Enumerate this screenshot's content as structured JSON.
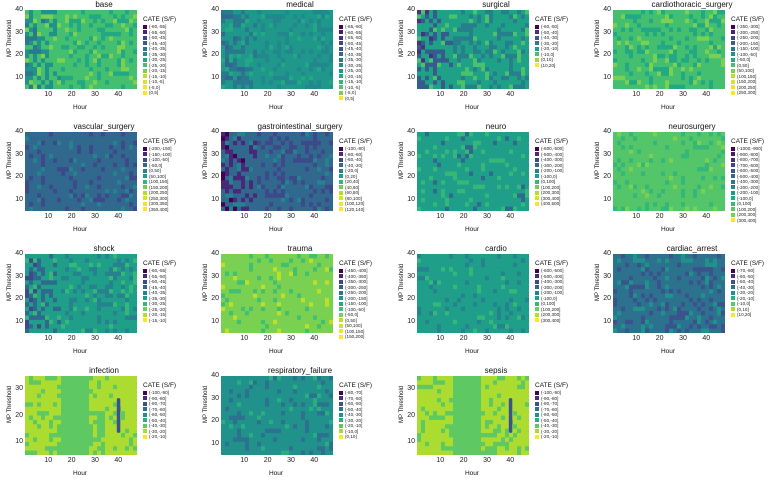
{
  "chart_data": [
    {
      "type": "heatmap",
      "title": "base",
      "xlabel": "Hour",
      "ylabel": "MP Threshold",
      "xticks": [
        10,
        20,
        30,
        40
      ],
      "yticks": [
        10,
        20,
        30,
        40
      ],
      "xlim": [
        0,
        48
      ],
      "ylim": [
        5,
        40
      ],
      "legend_title": "CATE (S/F)",
      "legend": [
        "(-60,-55]",
        "(-55,-50]",
        "(-50,-45]",
        "(-45,-40]",
        "(-40,-35]",
        "(-35,-30]",
        "(-30,-25]",
        "(-25,-20]",
        "(-20,-15]",
        "(-15,-10]",
        "(-10,-5]",
        "(-5,0]",
        "(0,5]"
      ],
      "colors": [
        "#440154",
        "#482475",
        "#414487",
        "#355f8d",
        "#2a788e",
        "#21918c",
        "#22a884",
        "#44bf70",
        "#7ad151",
        "#bddf26",
        "#d9e22a",
        "#ece72b",
        "#fde725"
      ],
      "base_level": 7,
      "texture": "dark_left"
    },
    {
      "type": "heatmap",
      "title": "medical",
      "xlabel": "Hour",
      "ylabel": "MP Threshold",
      "xticks": [
        10,
        20,
        30,
        40
      ],
      "yticks": [
        10,
        20,
        30,
        40
      ],
      "xlim": [
        0,
        48
      ],
      "ylim": [
        5,
        40
      ],
      "legend_title": "CATE (S/F)",
      "legend": [
        "(-65,-60]",
        "(-60,-55]",
        "(-55,-50]",
        "(-50,-45]",
        "(-45,-40]",
        "(-40,-35]",
        "(-35,-30]",
        "(-30,-25]",
        "(-25,-20]",
        "(-20,-15]",
        "(-15,-10]",
        "(-10,-5]",
        "(-5,0]",
        "(0,5]"
      ],
      "colors": [
        "#440154",
        "#481a6c",
        "#472f7d",
        "#414487",
        "#39568c",
        "#31688e",
        "#2a788e",
        "#23888e",
        "#1f988b",
        "#22a884",
        "#35b779",
        "#54c568",
        "#7ad151",
        "#fde725"
      ],
      "base_level": 8,
      "texture": "dark_left"
    },
    {
      "type": "heatmap",
      "title": "surgical",
      "xlabel": "Hour",
      "ylabel": "MP Threshold",
      "xticks": [
        10,
        20,
        30,
        40
      ],
      "yticks": [
        10,
        20,
        30,
        40
      ],
      "xlim": [
        0,
        48
      ],
      "ylim": [
        5,
        40
      ],
      "legend_title": "CATE (S/F)",
      "legend": [
        "(-60,-50]",
        "(-50,-40]",
        "(-40,-30]",
        "(-30,-20]",
        "(-20,-10]",
        "(-10,0]",
        "(0,10]",
        "(10,20]"
      ],
      "colors": [
        "#440154",
        "#46327e",
        "#365c8d",
        "#277f8e",
        "#1fa187",
        "#4ac16d",
        "#a0da39",
        "#fde725"
      ],
      "base_level": 4,
      "texture": "dark_left"
    },
    {
      "type": "heatmap",
      "title": "cardiothoracic_surgery",
      "xlabel": "Hour",
      "ylabel": "MP Threshold",
      "xticks": [
        10,
        20,
        30,
        40
      ],
      "yticks": [
        10,
        20,
        30,
        40
      ],
      "xlim": [
        0,
        48
      ],
      "ylim": [
        5,
        40
      ],
      "legend_title": "CATE (S/F)",
      "legend": [
        "(-350,-300]",
        "(-300,-250]",
        "(-250,-200]",
        "(-200,-150]",
        "(-150,-100]",
        "(-100,-50]",
        "(-50,0]",
        "(0,50]",
        "(50,100]",
        "(100,150]",
        "(150,200]",
        "(200,250]",
        "(250,300]"
      ],
      "colors": [
        "#440154",
        "#482475",
        "#414487",
        "#355f8d",
        "#2a788e",
        "#21918c",
        "#22a884",
        "#44bf70",
        "#7ad151",
        "#bddf26",
        "#d9e22a",
        "#ece72b",
        "#fde725"
      ],
      "base_level": 7,
      "texture": "blocks"
    },
    {
      "type": "heatmap",
      "title": "vascular_surgery",
      "xlabel": "Hour",
      "ylabel": "MP Threshold",
      "xticks": [
        10,
        20,
        30,
        40
      ],
      "yticks": [
        10,
        20,
        30,
        40
      ],
      "xlim": [
        0,
        48
      ],
      "ylim": [
        5,
        40
      ],
      "legend_title": "CATE (S/F)",
      "legend": [
        "(-200,-150]",
        "(-150,-100]",
        "(-100,-50]",
        "(-50,0]",
        "(0,50]",
        "(50,100]",
        "(100,150]",
        "(150,200]",
        "(200,250]",
        "(250,300]",
        "(300,350]",
        "(350,400]"
      ],
      "colors": [
        "#440154",
        "#482878",
        "#3e4989",
        "#31688e",
        "#26828e",
        "#1f9e89",
        "#35b779",
        "#6ece58",
        "#b5de2b",
        "#d9e22a",
        "#ece72b",
        "#fde725"
      ],
      "base_level": 3,
      "texture": "flat"
    },
    {
      "type": "heatmap",
      "title": "gastrointestinal_surgery",
      "xlabel": "Hour",
      "ylabel": "MP Threshold",
      "xticks": [
        10,
        20,
        30,
        40
      ],
      "yticks": [
        10,
        20,
        30,
        40
      ],
      "xlim": [
        0,
        48
      ],
      "ylim": [
        5,
        40
      ],
      "legend_title": "CATE (S/F)",
      "legend": [
        "(-100,-80]",
        "(-80,-60]",
        "(-60,-40]",
        "(-40,-20]",
        "(-20,0]",
        "(0,20]",
        "(20,40]",
        "(40,60]",
        "(60,80]",
        "(80,100]",
        "(100,120]",
        "(120,140]"
      ],
      "colors": [
        "#440154",
        "#482878",
        "#3e4989",
        "#31688e",
        "#26828e",
        "#1f9e89",
        "#35b779",
        "#6ece58",
        "#b5de2b",
        "#d9e22a",
        "#ece72b",
        "#fde725"
      ],
      "base_level": 3,
      "texture": "dark_left"
    },
    {
      "type": "heatmap",
      "title": "neuro",
      "xlabel": "Hour",
      "ylabel": "MP Threshold",
      "xticks": [
        10,
        20,
        30,
        40
      ],
      "yticks": [
        10,
        20,
        30,
        40
      ],
      "xlim": [
        0,
        48
      ],
      "ylim": [
        5,
        40
      ],
      "legend_title": "CATE (S/F)",
      "legend": [
        "(-600,-500]",
        "(-500,-400]",
        "(-400,-300]",
        "(-300,-200]",
        "(-200,-100]",
        "(-100,0]",
        "(0,100]",
        "(100,200]",
        "(200,300]",
        "(300,400]",
        "(400,500]"
      ],
      "colors": [
        "#440154",
        "#482878",
        "#3e4989",
        "#31688e",
        "#26828e",
        "#1f9e89",
        "#35b779",
        "#6ece58",
        "#b5de2b",
        "#d9e22a",
        "#fde725"
      ],
      "base_level": 5,
      "texture": "speckle"
    },
    {
      "type": "heatmap",
      "title": "neurosurgery",
      "xlabel": "Hour",
      "ylabel": "MP Threshold",
      "xticks": [
        10,
        20,
        30,
        40
      ],
      "yticks": [
        10,
        20,
        30,
        40
      ],
      "xlim": [
        0,
        48
      ],
      "ylim": [
        5,
        40
      ],
      "legend_title": "CATE (S/F)",
      "legend": [
        "(-1000,-900]",
        "(-900,-800]",
        "(-800,-700]",
        "(-700,-600]",
        "(-600,-500]",
        "(-500,-400]",
        "(-400,-300]",
        "(-300,-200]",
        "(-200,-100]",
        "(-100,0]",
        "(0,100]",
        "(100,200]",
        "(200,300]",
        "(300,400]"
      ],
      "colors": [
        "#440154",
        "#481a6c",
        "#472f7d",
        "#414487",
        "#39568c",
        "#31688e",
        "#2a788e",
        "#23888e",
        "#1f988b",
        "#22a884",
        "#35b779",
        "#54c568",
        "#7ad151",
        "#fde725"
      ],
      "base_level": 11,
      "texture": "flat"
    },
    {
      "type": "heatmap",
      "title": "shock",
      "xlabel": "Hour",
      "ylabel": "MP Threshold",
      "xticks": [
        10,
        20,
        30,
        40
      ],
      "yticks": [
        10,
        20,
        30,
        40
      ],
      "xlim": [
        0,
        48
      ],
      "ylim": [
        5,
        40
      ],
      "legend_title": "CATE (S/F)",
      "legend": [
        "(-60,-55]",
        "(-55,-50]",
        "(-50,-45]",
        "(-45,-40]",
        "(-40,-35]",
        "(-35,-30]",
        "(-30,-25]",
        "(-25,-20]",
        "(-20,-15]",
        "(-15,-10]"
      ],
      "colors": [
        "#440154",
        "#482878",
        "#3e4989",
        "#31688e",
        "#26828e",
        "#1f9e89",
        "#35b779",
        "#6ece58",
        "#b5de2b",
        "#fde725"
      ],
      "base_level": 5,
      "texture": "dark_left"
    },
    {
      "type": "heatmap",
      "title": "trauma",
      "xlabel": "Hour",
      "ylabel": "MP Threshold",
      "xticks": [
        10,
        20,
        30,
        40
      ],
      "yticks": [
        10,
        20,
        30,
        40
      ],
      "xlim": [
        0,
        48
      ],
      "ylim": [
        5,
        40
      ],
      "legend_title": "CATE (S/F)",
      "legend": [
        "(-450,-400]",
        "(-400,-350]",
        "(-350,-300]",
        "(-300,-250]",
        "(-250,-200]",
        "(-200,-150]",
        "(-150,-100]",
        "(-100,-50]",
        "(-50,0]",
        "(0,50]",
        "(50,100]",
        "(100,150]",
        "(150,200]"
      ],
      "colors": [
        "#440154",
        "#482475",
        "#414487",
        "#355f8d",
        "#2a788e",
        "#21918c",
        "#22a884",
        "#44bf70",
        "#7ad151",
        "#bddf26",
        "#d9e22a",
        "#ece72b",
        "#fde725"
      ],
      "base_level": 8,
      "texture": "flat"
    },
    {
      "type": "heatmap",
      "title": "cardio",
      "xlabel": "Hour",
      "ylabel": "MP Threshold",
      "xticks": [
        10,
        20,
        30,
        40
      ],
      "yticks": [
        10,
        20,
        30,
        40
      ],
      "xlim": [
        0,
        48
      ],
      "ylim": [
        5,
        40
      ],
      "legend_title": "CATE (S/F)",
      "legend": [
        "(-600,-500]",
        "(-500,-400]",
        "(-400,-300]",
        "(-300,-200]",
        "(-200,-100]",
        "(-100,0]",
        "(0,100]",
        "(100,200]",
        "(200,300]",
        "(300,400]"
      ],
      "colors": [
        "#440154",
        "#482878",
        "#3e4989",
        "#31688e",
        "#26828e",
        "#1f9e89",
        "#35b779",
        "#6ece58",
        "#b5de2b",
        "#fde725"
      ],
      "base_level": 5,
      "texture": "flat"
    },
    {
      "type": "heatmap",
      "title": "cardiac_arrest",
      "xlabel": "Hour",
      "ylabel": "MP Threshold",
      "xticks": [
        10,
        20,
        30,
        40
      ],
      "yticks": [
        10,
        20,
        30,
        40
      ],
      "xlim": [
        0,
        48
      ],
      "ylim": [
        5,
        40
      ],
      "legend_title": "CATE (S/F)",
      "legend": [
        "(-70,-60]",
        "(-60,-50]",
        "(-50,-40]",
        "(-40,-30]",
        "(-30,-20]",
        "(-20,-10]",
        "(-10,0]",
        "(0,10]",
        "(10,20]"
      ],
      "colors": [
        "#440154",
        "#472d7b",
        "#3b528b",
        "#2c728e",
        "#21918c",
        "#28ae80",
        "#5ec962",
        "#addc30",
        "#fde725"
      ],
      "base_level": 3,
      "texture": "blocks"
    },
    {
      "type": "heatmap",
      "title": "infection",
      "xlabel": "Hour",
      "ylabel": "MP Threshold",
      "xticks": [
        10,
        20,
        30,
        40
      ],
      "yticks": [
        10,
        20,
        30
      ],
      "xlim": [
        0,
        48
      ],
      "ylim": [
        5,
        35
      ],
      "legend_title": "CATE (S/F)",
      "legend": [
        "(-100,-90]",
        "(-90,-80]",
        "(-80,-70]",
        "(-70,-60]",
        "(-60,-50]",
        "(-50,-40]",
        "(-40,-30]",
        "(-30,-20]",
        "(-20,-10]"
      ],
      "colors": [
        "#440154",
        "#472d7b",
        "#3b528b",
        "#2c728e",
        "#21918c",
        "#28ae80",
        "#5ec962",
        "#addc30",
        "#fde725"
      ],
      "base_level": 7,
      "texture": "infection"
    },
    {
      "type": "heatmap",
      "title": "respiratory_failure",
      "xlabel": "Hour",
      "ylabel": "MP Threshold",
      "xticks": [
        10,
        20,
        30,
        40
      ],
      "yticks": [
        10,
        20,
        30,
        40
      ],
      "xlim": [
        0,
        48
      ],
      "ylim": [
        5,
        40
      ],
      "legend_title": "CATE (S/F)",
      "legend": [
        "(-80,-70]",
        "(-70,-60]",
        "(-60,-50]",
        "(-50,-40]",
        "(-40,-30]",
        "(-30,-20]",
        "(-20,-10]",
        "(-10,0]",
        "(0,10]"
      ],
      "colors": [
        "#440154",
        "#472d7b",
        "#3b528b",
        "#2c728e",
        "#21918c",
        "#28ae80",
        "#5ec962",
        "#addc30",
        "#fde725"
      ],
      "base_level": 4,
      "texture": "flat"
    },
    {
      "type": "heatmap",
      "title": "sepsis",
      "xlabel": "Hour",
      "ylabel": "MP Threshold",
      "xticks": [
        10,
        20,
        30,
        40
      ],
      "yticks": [
        10,
        20,
        30
      ],
      "xlim": [
        0,
        48
      ],
      "ylim": [
        5,
        35
      ],
      "legend_title": "CATE (S/F)",
      "legend": [
        "(-100,-90]",
        "(-90,-80]",
        "(-80,-70]",
        "(-70,-60]",
        "(-60,-50]",
        "(-50,-40]",
        "(-40,-30]",
        "(-30,-20]",
        "(-20,-10]"
      ],
      "colors": [
        "#440154",
        "#472d7b",
        "#3b528b",
        "#2c728e",
        "#21918c",
        "#28ae80",
        "#5ec962",
        "#addc30",
        "#fde725"
      ],
      "base_level": 7,
      "texture": "infection"
    }
  ]
}
